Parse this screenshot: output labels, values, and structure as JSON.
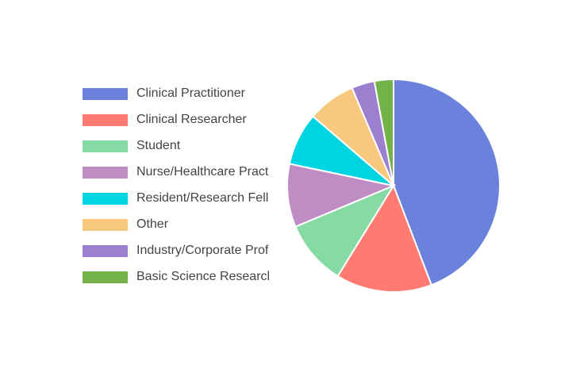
{
  "chart_data": {
    "type": "pie",
    "categories": [
      "Clinical Practitioner",
      "Clinical Researcher",
      "Student",
      "Nurse/Healthcare Pract",
      "Resident/Research Fell",
      "Other",
      "Industry/Corporate Prof",
      "Basic Science Researcl"
    ],
    "values": [
      44.2,
      14.6,
      9.9,
      9.6,
      8.0,
      7.3,
      3.5,
      2.9
    ],
    "colors": [
      "#6a82db",
      "#ff7b72",
      "#86dba5",
      "#c08cc4",
      "#00d4e0",
      "#f9c87f",
      "#9c7fcf",
      "#74b34a"
    ],
    "legend": "left"
  }
}
